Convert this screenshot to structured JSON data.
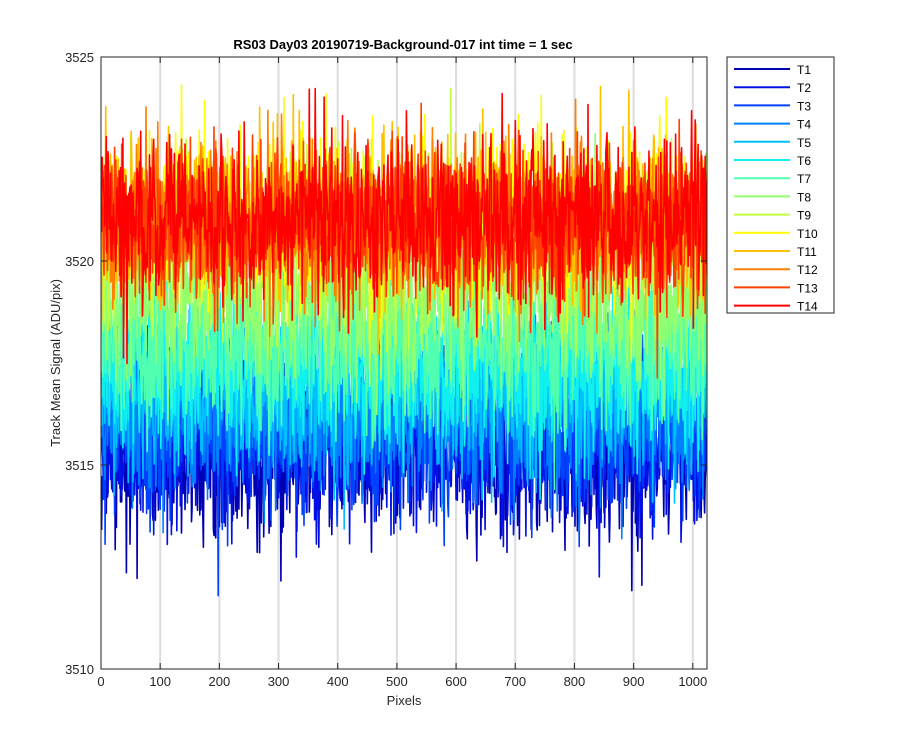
{
  "chart_data": {
    "type": "line",
    "title": "RS03 Day03 20190719-Background-017 int time = 1 sec",
    "xlabel": "Pixels",
    "ylabel": "Track Mean Signal (ADU/pix)",
    "xlim": [
      0,
      1024
    ],
    "ylim": [
      3510,
      3525
    ],
    "xticks": [
      0,
      100,
      200,
      300,
      400,
      500,
      600,
      700,
      800,
      900,
      1000
    ],
    "yticks": [
      3510,
      3515,
      3520,
      3525
    ],
    "grid": "x",
    "legend_position": "outside-top-right",
    "n_points": 1024,
    "series": [
      {
        "name": "T1",
        "color": "#0000b3",
        "mean": 3515.2,
        "sd": 1.0
      },
      {
        "name": "T2",
        "color": "#0010e6",
        "mean": 3515.5,
        "sd": 1.0
      },
      {
        "name": "T3",
        "color": "#0040ff",
        "mean": 3515.9,
        "sd": 1.0
      },
      {
        "name": "T4",
        "color": "#0080ff",
        "mean": 3516.4,
        "sd": 1.0
      },
      {
        "name": "T5",
        "color": "#00c0ff",
        "mean": 3516.9,
        "sd": 1.0
      },
      {
        "name": "T6",
        "color": "#10f0ee",
        "mean": 3517.4,
        "sd": 1.0
      },
      {
        "name": "T7",
        "color": "#50ffb0",
        "mean": 3518.0,
        "sd": 1.0
      },
      {
        "name": "T8",
        "color": "#90ff70",
        "mean": 3519.2,
        "sd": 1.0
      },
      {
        "name": "T9",
        "color": "#c0ff40",
        "mean": 3520.6,
        "sd": 1.0
      },
      {
        "name": "T10",
        "color": "#ffff00",
        "mean": 3521.1,
        "sd": 1.0
      },
      {
        "name": "T11",
        "color": "#ffc000",
        "mean": 3521.0,
        "sd": 1.0
      },
      {
        "name": "T12",
        "color": "#ff8000",
        "mean": 3520.9,
        "sd": 1.0
      },
      {
        "name": "T13",
        "color": "#ff4000",
        "mean": 3520.9,
        "sd": 1.0
      },
      {
        "name": "T14",
        "color": "#ff0000",
        "mean": 3521.0,
        "sd": 1.0
      }
    ]
  }
}
